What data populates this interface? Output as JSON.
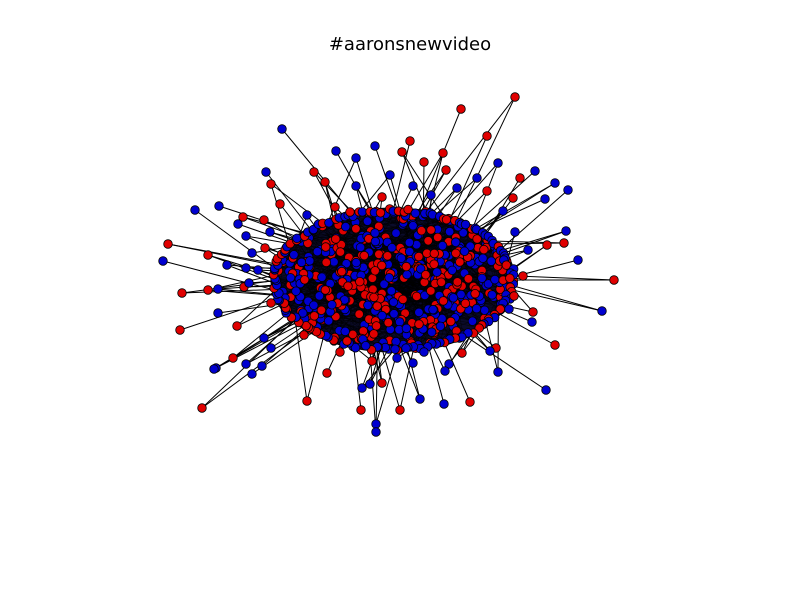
{
  "figure": {
    "title": "#aaronsnewvideo"
  },
  "graph": {
    "colors": {
      "community_a": "#e00000",
      "community_b": "#0000d0",
      "edge": "#000000",
      "node_outline": "#000000",
      "background": "#ffffff"
    },
    "legend": "none",
    "axes": "hidden"
  }
}
